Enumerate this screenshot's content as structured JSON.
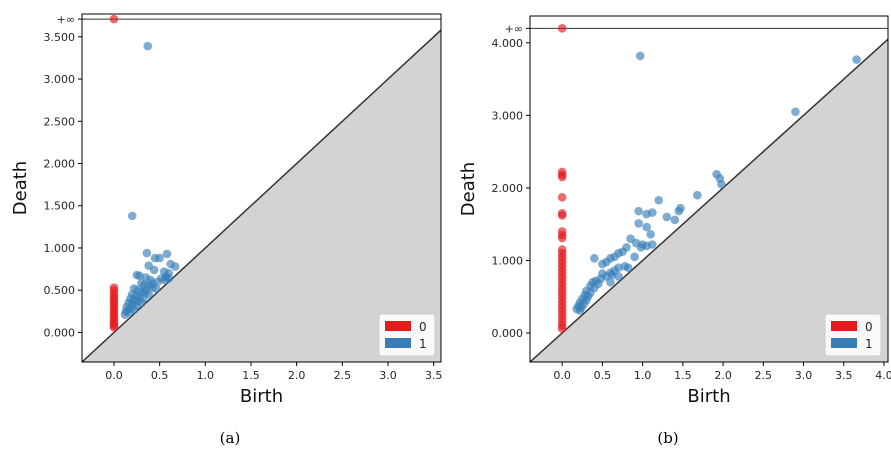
{
  "chart_data": [
    {
      "type": "scatter",
      "caption": "(a)",
      "xlabel": "Birth",
      "ylabel": "Death",
      "xlim": [
        -0.35,
        3.58
      ],
      "ylim": [
        -0.35,
        3.77
      ],
      "xticks": [
        0.0,
        0.5,
        1.0,
        1.5,
        2.0,
        2.5,
        3.0,
        3.5
      ],
      "xtick_labels": [
        "0.0",
        "0.5",
        "1.0",
        "1.5",
        "2.0",
        "2.5",
        "3.0",
        "3.5"
      ],
      "yticks": [
        0.0,
        0.5,
        1.0,
        1.5,
        2.0,
        2.5,
        3.0,
        3.5
      ],
      "ytick_labels": [
        "0.000",
        "0.500",
        "1.000",
        "1.500",
        "2.000",
        "2.500",
        "3.000",
        "3.500"
      ],
      "infinity_level": 3.71,
      "infinity_label": "+∞",
      "legend": {
        "position": "bottom-right",
        "entries": [
          "0",
          "1"
        ]
      },
      "colors": {
        "0": "#e41a1c",
        "1": "#377eb8",
        "diagonal_fill": "#d3d3d3"
      },
      "series": [
        {
          "name": "0",
          "points": [
            [
              0,
              3.71
            ],
            [
              0,
              0.53
            ],
            [
              0,
              0.5
            ],
            [
              0,
              0.46
            ],
            [
              0,
              0.43
            ],
            [
              0,
              0.4
            ],
            [
              0,
              0.37
            ],
            [
              0,
              0.34
            ],
            [
              0,
              0.31
            ],
            [
              0,
              0.28
            ],
            [
              0,
              0.25
            ],
            [
              0,
              0.22
            ],
            [
              0,
              0.19
            ],
            [
              0,
              0.16
            ],
            [
              0,
              0.13
            ],
            [
              0,
              0.1
            ],
            [
              0,
              0.08
            ],
            [
              0,
              0.06
            ]
          ]
        },
        {
          "name": "1",
          "points": [
            [
              0.37,
              3.39
            ],
            [
              0.2,
              1.38
            ],
            [
              0.36,
              0.94
            ],
            [
              0.45,
              0.88
            ],
            [
              0.5,
              0.88
            ],
            [
              0.58,
              0.93
            ],
            [
              0.38,
              0.79
            ],
            [
              0.62,
              0.81
            ],
            [
              0.67,
              0.78
            ],
            [
              0.44,
              0.74
            ],
            [
              0.55,
              0.72
            ],
            [
              0.6,
              0.7
            ],
            [
              0.25,
              0.68
            ],
            [
              0.28,
              0.67
            ],
            [
              0.35,
              0.65
            ],
            [
              0.4,
              0.62
            ],
            [
              0.48,
              0.6
            ],
            [
              0.52,
              0.64
            ],
            [
              0.57,
              0.66
            ],
            [
              0.3,
              0.58
            ],
            [
              0.33,
              0.56
            ],
            [
              0.38,
              0.55
            ],
            [
              0.42,
              0.53
            ],
            [
              0.46,
              0.52
            ],
            [
              0.22,
              0.52
            ],
            [
              0.26,
              0.5
            ],
            [
              0.3,
              0.48
            ],
            [
              0.34,
              0.47
            ],
            [
              0.38,
              0.45
            ],
            [
              0.2,
              0.45
            ],
            [
              0.24,
              0.43
            ],
            [
              0.28,
              0.42
            ],
            [
              0.32,
              0.4
            ],
            [
              0.18,
              0.4
            ],
            [
              0.22,
              0.38
            ],
            [
              0.26,
              0.37
            ],
            [
              0.3,
              0.35
            ],
            [
              0.16,
              0.35
            ],
            [
              0.2,
              0.33
            ],
            [
              0.24,
              0.32
            ],
            [
              0.14,
              0.3
            ],
            [
              0.18,
              0.28
            ],
            [
              0.22,
              0.27
            ],
            [
              0.13,
              0.25
            ],
            [
              0.16,
              0.24
            ],
            [
              0.12,
              0.21
            ],
            [
              0.56,
              0.62
            ],
            [
              0.6,
              0.64
            ],
            [
              0.42,
              0.58
            ],
            [
              0.35,
              0.5
            ]
          ]
        }
      ]
    },
    {
      "type": "scatter",
      "caption": "(b)",
      "xlabel": "Birth",
      "ylabel": "Death",
      "xlim": [
        -0.4,
        4.05
      ],
      "ylim": [
        -0.4,
        4.37
      ],
      "xticks": [
        0.0,
        0.5,
        1.0,
        1.5,
        2.0,
        2.5,
        3.0,
        3.5,
        4.0
      ],
      "xtick_labels": [
        "0.0",
        "0.5",
        "1.0",
        "1.5",
        "2.0",
        "2.5",
        "3.0",
        "3.5",
        "4.0"
      ],
      "yticks": [
        0.0,
        1.0,
        2.0,
        3.0,
        4.0
      ],
      "ytick_labels": [
        "0.000",
        "1.000",
        "2.000",
        "3.000",
        "4.000"
      ],
      "infinity_level": 4.2,
      "infinity_label": "+∞",
      "legend": {
        "position": "bottom-right",
        "entries": [
          "0",
          "1"
        ]
      },
      "colors": {
        "0": "#e41a1c",
        "1": "#377eb8",
        "diagonal_fill": "#d3d3d3"
      },
      "series": [
        {
          "name": "0",
          "points": [
            [
              0,
              4.2
            ],
            [
              0,
              2.22
            ],
            [
              0,
              2.18
            ],
            [
              0,
              2.15
            ],
            [
              0,
              1.87
            ],
            [
              0,
              1.65
            ],
            [
              0,
              1.62
            ],
            [
              0,
              1.4
            ],
            [
              0,
              1.35
            ],
            [
              0,
              1.31
            ],
            [
              0,
              1.15
            ],
            [
              0,
              1.1
            ],
            [
              0,
              1.05
            ],
            [
              0,
              1.0
            ],
            [
              0,
              0.95
            ],
            [
              0,
              0.9
            ],
            [
              0,
              0.85
            ],
            [
              0,
              0.8
            ],
            [
              0,
              0.75
            ],
            [
              0,
              0.7
            ],
            [
              0,
              0.65
            ],
            [
              0,
              0.6
            ],
            [
              0,
              0.55
            ],
            [
              0,
              0.5
            ],
            [
              0,
              0.45
            ],
            [
              0,
              0.4
            ],
            [
              0,
              0.35
            ],
            [
              0,
              0.3
            ],
            [
              0,
              0.25
            ],
            [
              0,
              0.2
            ],
            [
              0,
              0.15
            ],
            [
              0,
              0.1
            ],
            [
              0,
              0.06
            ]
          ]
        },
        {
          "name": "1",
          "points": [
            [
              0.97,
              3.82
            ],
            [
              3.66,
              3.77
            ],
            [
              2.9,
              3.05
            ],
            [
              1.92,
              2.19
            ],
            [
              1.96,
              2.13
            ],
            [
              1.98,
              2.05
            ],
            [
              1.2,
              1.83
            ],
            [
              1.68,
              1.9
            ],
            [
              1.47,
              1.72
            ],
            [
              1.45,
              1.68
            ],
            [
              0.95,
              1.68
            ],
            [
              1.05,
              1.64
            ],
            [
              1.12,
              1.66
            ],
            [
              1.3,
              1.6
            ],
            [
              1.4,
              1.56
            ],
            [
              0.95,
              1.51
            ],
            [
              1.05,
              1.46
            ],
            [
              1.1,
              1.36
            ],
            [
              0.85,
              1.3
            ],
            [
              0.92,
              1.24
            ],
            [
              1.0,
              1.22
            ],
            [
              1.05,
              1.2
            ],
            [
              1.12,
              1.22
            ],
            [
              0.98,
              1.18
            ],
            [
              0.8,
              1.18
            ],
            [
              0.75,
              1.12
            ],
            [
              0.7,
              1.1
            ],
            [
              0.65,
              1.05
            ],
            [
              0.9,
              1.05
            ],
            [
              0.6,
              1.03
            ],
            [
              0.4,
              1.03
            ],
            [
              0.55,
              0.98
            ],
            [
              0.5,
              0.95
            ],
            [
              0.78,
              0.92
            ],
            [
              0.82,
              0.9
            ],
            [
              0.7,
              0.9
            ],
            [
              0.65,
              0.86
            ],
            [
              0.6,
              0.83
            ],
            [
              0.5,
              0.82
            ],
            [
              0.62,
              0.8
            ],
            [
              0.55,
              0.78
            ],
            [
              0.48,
              0.75
            ],
            [
              0.42,
              0.72
            ],
            [
              0.38,
              0.7
            ],
            [
              0.45,
              0.68
            ],
            [
              0.35,
              0.65
            ],
            [
              0.4,
              0.62
            ],
            [
              0.3,
              0.58
            ],
            [
              0.35,
              0.55
            ],
            [
              0.28,
              0.52
            ],
            [
              0.32,
              0.5
            ],
            [
              0.25,
              0.47
            ],
            [
              0.3,
              0.45
            ],
            [
              0.22,
              0.42
            ],
            [
              0.27,
              0.4
            ],
            [
              0.2,
              0.37
            ],
            [
              0.24,
              0.35
            ],
            [
              0.18,
              0.33
            ],
            [
              0.22,
              0.31
            ],
            [
              0.6,
              0.7
            ],
            [
              0.7,
              0.78
            ]
          ]
        }
      ]
    }
  ]
}
